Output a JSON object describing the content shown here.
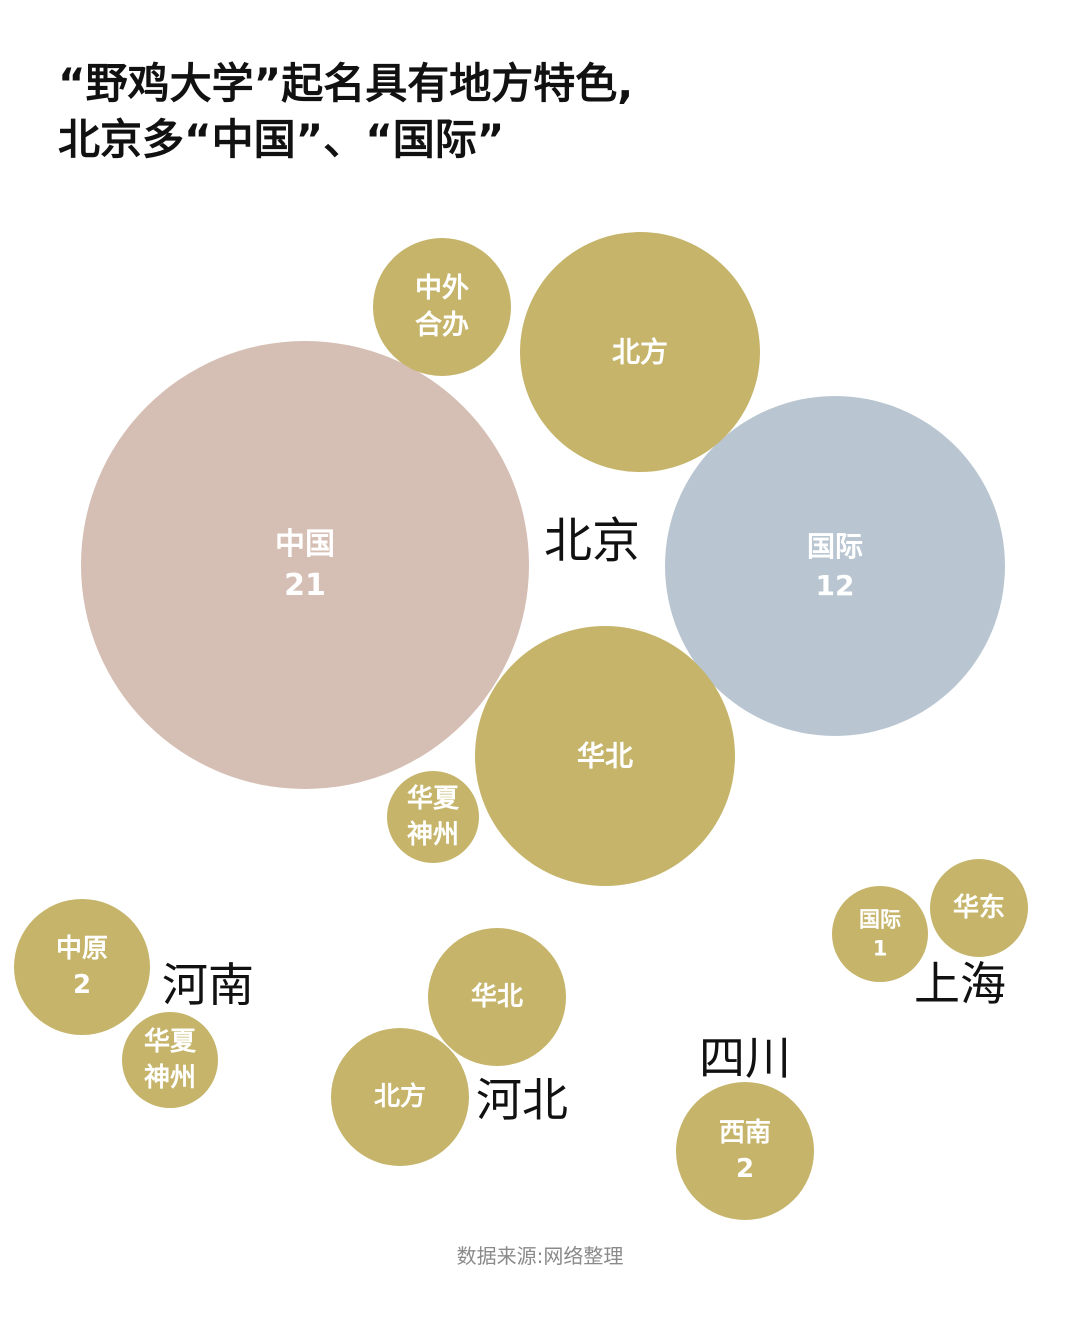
{
  "title": {
    "line1": "“野鸡大学”起名具有地方特色,",
    "line2": "北京多“中国”、“国际”"
  },
  "source": "数据来源:网络整理",
  "colors": {
    "gold": "#c5b46a",
    "pink": "#d5beb3",
    "blue": "#b9c6d1",
    "bubble_text": "#ffffff",
    "region_text": "#111111"
  },
  "chart_data": {
    "type": "bubble",
    "title": "“野鸡大学”起名具有地方特色, 北京多“中国”、“国际”",
    "groups": [
      {
        "region": "北京",
        "bubbles": [
          {
            "name": "中国",
            "value": 21,
            "value_label": "21",
            "color": "pink"
          },
          {
            "name": "国际",
            "value": 12,
            "value_label": "12",
            "color": "blue"
          },
          {
            "name": "北方",
            "value": 6,
            "value_label": "",
            "color": "gold"
          },
          {
            "name": "华北",
            "value": 7,
            "value_label": "",
            "color": "gold"
          },
          {
            "name": "中外合办",
            "lines": [
              "中外",
              "合办"
            ],
            "value": 2,
            "value_label": "",
            "color": "gold"
          },
          {
            "name": "华夏神州",
            "lines": [
              "华夏",
              "神州"
            ],
            "value": 1,
            "value_label": "",
            "color": "gold"
          }
        ]
      },
      {
        "region": "河南",
        "bubbles": [
          {
            "name": "中原",
            "value": 2,
            "value_label": "2",
            "color": "gold"
          },
          {
            "name": "华夏神州",
            "lines": [
              "华夏",
              "神州"
            ],
            "value": 1,
            "value_label": "",
            "color": "gold"
          }
        ]
      },
      {
        "region": "河北",
        "bubbles": [
          {
            "name": "华北",
            "value": 2,
            "value_label": "",
            "color": "gold"
          },
          {
            "name": "北方",
            "value": 2,
            "value_label": "",
            "color": "gold"
          }
        ]
      },
      {
        "region": "四川",
        "bubbles": [
          {
            "name": "西南",
            "value": 2,
            "value_label": "2",
            "color": "gold"
          }
        ]
      },
      {
        "region": "上海",
        "bubbles": [
          {
            "name": "国际",
            "value": 1,
            "value_label": "1",
            "color": "gold"
          },
          {
            "name": "华东",
            "value": 1,
            "value_label": "",
            "color": "gold"
          }
        ]
      }
    ]
  }
}
